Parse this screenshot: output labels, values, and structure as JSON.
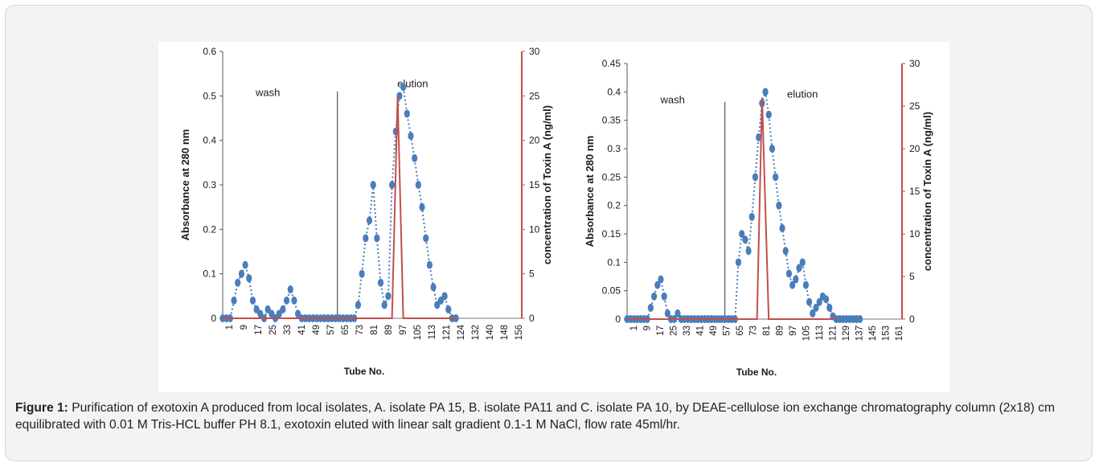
{
  "caption": {
    "label": "Figure 1:",
    "text": " Purification of exotoxin A produced from local isolates, A. isolate PA 15, B. isolate PA11 and C. isolate PA 10, by DEAE-cellulose ion exchange chromatography column (2x18) cm equilibrated with 0.01 M Tris-HCL buffer PH 8.1, exotoxin eluted with linear salt gradient 0.1-1 M NaCl, flow rate 45ml/hr."
  },
  "chart_data": [
    {
      "type": "line",
      "xlabel": "Tube No.",
      "ylabel": "Absorbance at 280 nm",
      "y2label": "concentration of Toxin A (ng/ml)",
      "ylim": [
        0,
        0.6
      ],
      "y2lim": [
        0,
        30
      ],
      "yticks": [
        "0",
        "0.1",
        "0.2",
        "0.3",
        "0.4",
        "0.5",
        "0.6"
      ],
      "y2ticks": [
        "0",
        "5",
        "10",
        "15",
        "20",
        "25",
        "30"
      ],
      "xlim": [
        1,
        160
      ],
      "xticks": [
        "1",
        "9",
        "17",
        "25",
        "33",
        "41",
        "49",
        "57",
        "65",
        "73",
        "81",
        "89",
        "97",
        "105",
        "113",
        "121",
        "124",
        "132",
        "140",
        "148",
        "156"
      ],
      "annotations": [
        {
          "text": "wash",
          "x": 25,
          "y": 0.5
        },
        {
          "text": "elution",
          "x": 102,
          "y": 0.52
        }
      ],
      "divider_x": 62,
      "series": [
        {
          "axis": "left",
          "color": "#4a7ebb",
          "style": "dotted-markers",
          "x": [
            1,
            3,
            5,
            7,
            9,
            11,
            13,
            15,
            17,
            19,
            21,
            23,
            25,
            27,
            29,
            31,
            33,
            35,
            37,
            39,
            41,
            43,
            45,
            47,
            49,
            51,
            53,
            55,
            57,
            59,
            61,
            63,
            65,
            67,
            69,
            71,
            73,
            75,
            77,
            79,
            81,
            83,
            85,
            87,
            89,
            91,
            93,
            95,
            97,
            99,
            101,
            103,
            105,
            107,
            109,
            111,
            113,
            115,
            117,
            119,
            121,
            123,
            125
          ],
          "y": [
            0,
            0,
            0,
            0.04,
            0.08,
            0.1,
            0.12,
            0.09,
            0.04,
            0.02,
            0.01,
            0,
            0.02,
            0.01,
            0,
            0.01,
            0.02,
            0.04,
            0.065,
            0.04,
            0.01,
            0,
            0,
            0,
            0,
            0,
            0,
            0,
            0,
            0,
            0,
            0,
            0,
            0,
            0,
            0,
            0.03,
            0.1,
            0.18,
            0.22,
            0.3,
            0.18,
            0.08,
            0.03,
            0.05,
            0.3,
            0.42,
            0.5,
            0.52,
            0.46,
            0.41,
            0.36,
            0.3,
            0.25,
            0.18,
            0.12,
            0.07,
            0.03,
            0.04,
            0.05,
            0.02,
            0,
            0
          ]
        },
        {
          "axis": "right",
          "color": "#c0504d",
          "style": "line",
          "x": [
            1,
            91,
            94,
            97,
            125
          ],
          "y": [
            0,
            0,
            25,
            0,
            0
          ]
        }
      ]
    },
    {
      "type": "line",
      "xlabel": "Tube No.",
      "ylabel": "Absorbance at 280 nm",
      "y2label": "concentration of Toxin A (ng/ml)",
      "ylim": [
        0,
        0.45
      ],
      "y2lim": [
        0,
        30
      ],
      "yticks": [
        "0",
        "0.05",
        "0.1",
        "0.15",
        "0.2",
        "0.25",
        "0.3",
        "0.35",
        "0.4",
        "0.45"
      ],
      "y2ticks": [
        "0",
        "5",
        "10",
        "15",
        "20",
        "25",
        "30"
      ],
      "xlim": [
        1,
        164
      ],
      "xticks": [
        "1",
        "9",
        "17",
        "25",
        "33",
        "41",
        "49",
        "57",
        "65",
        "73",
        "81",
        "89",
        "97",
        "105",
        "113",
        "121",
        "129",
        "137",
        "145",
        "153",
        "161"
      ],
      "annotations": [
        {
          "text": "wash",
          "x": 28,
          "y": 0.38
        },
        {
          "text": "elution",
          "x": 105,
          "y": 0.39
        }
      ],
      "divider_x": 59,
      "series": [
        {
          "axis": "left",
          "color": "#4a7ebb",
          "style": "dotted-markers",
          "x": [
            1,
            3,
            5,
            7,
            9,
            11,
            13,
            15,
            17,
            19,
            21,
            23,
            25,
            27,
            29,
            31,
            33,
            35,
            37,
            39,
            41,
            43,
            45,
            47,
            49,
            51,
            53,
            55,
            57,
            59,
            61,
            63,
            65,
            67,
            69,
            71,
            73,
            75,
            77,
            79,
            81,
            83,
            85,
            87,
            89,
            91,
            93,
            95,
            97,
            99,
            101,
            103,
            105,
            107,
            109,
            111,
            113,
            115,
            117,
            119,
            121,
            123,
            125,
            127,
            129,
            131,
            133,
            135,
            137,
            139
          ],
          "y": [
            0,
            0,
            0,
            0,
            0,
            0,
            0,
            0.02,
            0.04,
            0.06,
            0.07,
            0.04,
            0.01,
            0,
            0,
            0.01,
            0,
            0,
            0,
            0,
            0,
            0,
            0,
            0,
            0,
            0,
            0,
            0,
            0,
            0,
            0,
            0,
            0,
            0.1,
            0.15,
            0.14,
            0.12,
            0.18,
            0.25,
            0.32,
            0.38,
            0.4,
            0.36,
            0.3,
            0.25,
            0.2,
            0.16,
            0.12,
            0.08,
            0.06,
            0.07,
            0.09,
            0.1,
            0.06,
            0.03,
            0.01,
            0.02,
            0.03,
            0.04,
            0.035,
            0.02,
            0.005,
            0,
            0,
            0,
            0,
            0,
            0,
            0,
            0
          ]
        },
        {
          "axis": "right",
          "color": "#c0504d",
          "style": "line",
          "x": [
            1,
            78,
            81,
            85,
            125
          ],
          "y": [
            0,
            0,
            26,
            0,
            0
          ]
        }
      ]
    }
  ]
}
